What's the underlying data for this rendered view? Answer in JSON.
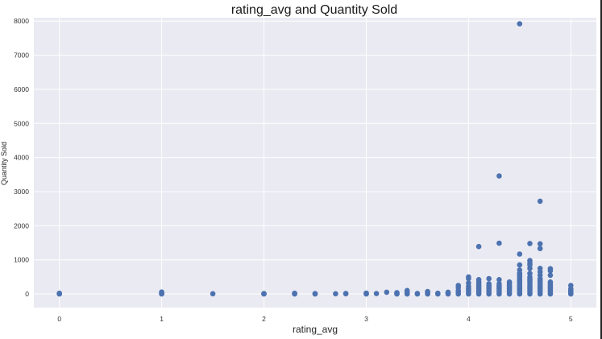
{
  "colors": {
    "background": "#eaeaf2",
    "grid": "#ffffff",
    "marker": "#4c72b0"
  },
  "chart_data": {
    "type": "scatter",
    "title": "rating_avg and Quantity Sold",
    "xlabel": "rating_avg",
    "ylabel": "Quantity Sold",
    "xlim": [
      -0.25,
      5.25
    ],
    "ylim": [
      -400,
      8100
    ],
    "xticks": [
      0,
      1,
      2,
      3,
      4,
      5
    ],
    "yticks": [
      0,
      1000,
      2000,
      3000,
      4000,
      5000,
      6000,
      7000,
      8000
    ],
    "grid": true,
    "points": [
      [
        0,
        0
      ],
      [
        0,
        10
      ],
      [
        0,
        20
      ],
      [
        1,
        0
      ],
      [
        1,
        15
      ],
      [
        1,
        30
      ],
      [
        1,
        55
      ],
      [
        1.5,
        5
      ],
      [
        2,
        0
      ],
      [
        2,
        5
      ],
      [
        2,
        10
      ],
      [
        2.3,
        0
      ],
      [
        2.3,
        10
      ],
      [
        2.3,
        20
      ],
      [
        2.5,
        0
      ],
      [
        2.5,
        10
      ],
      [
        2.7,
        5
      ],
      [
        2.8,
        5
      ],
      [
        2.8,
        15
      ],
      [
        3,
        0
      ],
      [
        3,
        10
      ],
      [
        3,
        25
      ],
      [
        3.1,
        10
      ],
      [
        3.2,
        50
      ],
      [
        3.3,
        0
      ],
      [
        3.3,
        20
      ],
      [
        3.3,
        40
      ],
      [
        3.4,
        0
      ],
      [
        3.4,
        30
      ],
      [
        3.4,
        60
      ],
      [
        3.4,
        100
      ],
      [
        3.5,
        0
      ],
      [
        3.5,
        15
      ],
      [
        3.6,
        0
      ],
      [
        3.6,
        30
      ],
      [
        3.6,
        70
      ],
      [
        3.7,
        0
      ],
      [
        3.7,
        20
      ],
      [
        3.8,
        0
      ],
      [
        3.8,
        20
      ],
      [
        3.8,
        50
      ],
      [
        3.9,
        0
      ],
      [
        3.9,
        50
      ],
      [
        3.9,
        100
      ],
      [
        3.9,
        180
      ],
      [
        3.9,
        250
      ],
      [
        4,
        0
      ],
      [
        4,
        50
      ],
      [
        4,
        100
      ],
      [
        4,
        150
      ],
      [
        4,
        220
      ],
      [
        4,
        320
      ],
      [
        4,
        450
      ],
      [
        4,
        500
      ],
      [
        4.1,
        0
      ],
      [
        4.1,
        50
      ],
      [
        4.1,
        100
      ],
      [
        4.1,
        150
      ],
      [
        4.1,
        200
      ],
      [
        4.1,
        250
      ],
      [
        4.1,
        300
      ],
      [
        4.1,
        350
      ],
      [
        4.1,
        420
      ],
      [
        4.1,
        1390
      ],
      [
        4.2,
        0
      ],
      [
        4.2,
        50
      ],
      [
        4.2,
        100
      ],
      [
        4.2,
        150
      ],
      [
        4.2,
        200
      ],
      [
        4.2,
        250
      ],
      [
        4.2,
        300
      ],
      [
        4.2,
        450
      ],
      [
        4.3,
        0
      ],
      [
        4.3,
        50
      ],
      [
        4.3,
        100
      ],
      [
        4.3,
        150
      ],
      [
        4.3,
        200
      ],
      [
        4.3,
        250
      ],
      [
        4.3,
        300
      ],
      [
        4.3,
        420
      ],
      [
        4.3,
        1490
      ],
      [
        4.3,
        3460
      ],
      [
        4.4,
        0
      ],
      [
        4.4,
        50
      ],
      [
        4.4,
        100
      ],
      [
        4.4,
        150
      ],
      [
        4.4,
        200
      ],
      [
        4.4,
        250
      ],
      [
        4.4,
        300
      ],
      [
        4.4,
        350
      ],
      [
        4.5,
        0
      ],
      [
        4.5,
        50
      ],
      [
        4.5,
        100
      ],
      [
        4.5,
        150
      ],
      [
        4.5,
        200
      ],
      [
        4.5,
        250
      ],
      [
        4.5,
        300
      ],
      [
        4.5,
        350
      ],
      [
        4.5,
        400
      ],
      [
        4.5,
        450
      ],
      [
        4.5,
        500
      ],
      [
        4.5,
        550
      ],
      [
        4.5,
        600
      ],
      [
        4.5,
        700
      ],
      [
        4.5,
        850
      ],
      [
        4.5,
        1170
      ],
      [
        4.5,
        7920
      ],
      [
        4.6,
        0
      ],
      [
        4.6,
        50
      ],
      [
        4.6,
        100
      ],
      [
        4.6,
        150
      ],
      [
        4.6,
        200
      ],
      [
        4.6,
        250
      ],
      [
        4.6,
        300
      ],
      [
        4.6,
        350
      ],
      [
        4.6,
        400
      ],
      [
        4.6,
        450
      ],
      [
        4.6,
        500
      ],
      [
        4.6,
        600
      ],
      [
        4.6,
        750
      ],
      [
        4.6,
        850
      ],
      [
        4.6,
        900
      ],
      [
        4.6,
        980
      ],
      [
        4.6,
        1480
      ],
      [
        4.7,
        0
      ],
      [
        4.7,
        50
      ],
      [
        4.7,
        100
      ],
      [
        4.7,
        150
      ],
      [
        4.7,
        200
      ],
      [
        4.7,
        250
      ],
      [
        4.7,
        300
      ],
      [
        4.7,
        350
      ],
      [
        4.7,
        400
      ],
      [
        4.7,
        450
      ],
      [
        4.7,
        550
      ],
      [
        4.7,
        650
      ],
      [
        4.7,
        750
      ],
      [
        4.7,
        1330
      ],
      [
        4.7,
        1470
      ],
      [
        4.7,
        2720
      ],
      [
        4.8,
        0
      ],
      [
        4.8,
        50
      ],
      [
        4.8,
        100
      ],
      [
        4.8,
        150
      ],
      [
        4.8,
        200
      ],
      [
        4.8,
        250
      ],
      [
        4.8,
        300
      ],
      [
        4.8,
        350
      ],
      [
        4.8,
        550
      ],
      [
        4.8,
        680
      ],
      [
        4.8,
        740
      ],
      [
        5,
        0
      ],
      [
        5,
        20
      ],
      [
        5,
        50
      ],
      [
        5,
        80
      ],
      [
        5,
        110
      ],
      [
        5,
        150
      ],
      [
        5,
        250
      ]
    ]
  }
}
